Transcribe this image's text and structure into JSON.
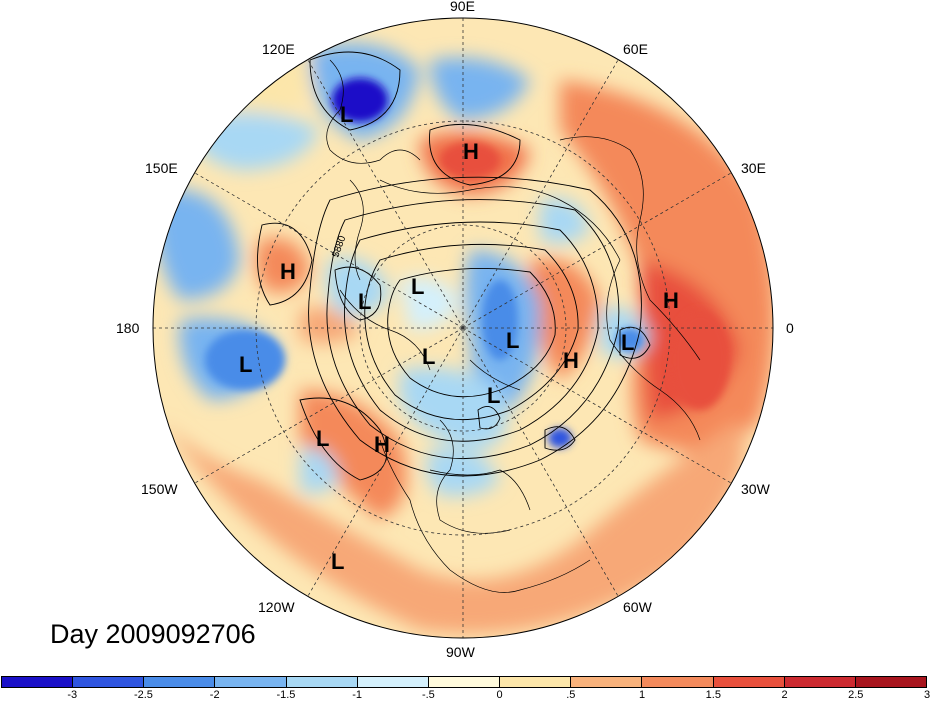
{
  "title": "Day 2009092706",
  "projection": "north-polar-stereographic",
  "longitude_labels": {
    "lon_90e": "90E",
    "lon_60e": "60E",
    "lon_30e": "30E",
    "lon_0": "0",
    "lon_30w": "30W",
    "lon_60w": "60W",
    "lon_90w": "90W",
    "lon_120w": "120W",
    "lon_150w": "150W",
    "lon_180": "180",
    "lon_150e": "150E",
    "lon_120e": "120E"
  },
  "contour_label": "5880",
  "pressure_centers": [
    {
      "label": "L",
      "region": "east-siberia"
    },
    {
      "label": "H",
      "region": "central-siberia"
    },
    {
      "label": "H",
      "region": "bering-sea"
    },
    {
      "label": "L",
      "region": "east-siberia-arctic"
    },
    {
      "label": "L",
      "region": "laptev-sea"
    },
    {
      "label": "L",
      "region": "kara-sea"
    },
    {
      "label": "L",
      "region": "arctic-ocean"
    },
    {
      "label": "H",
      "region": "scandinavia"
    },
    {
      "label": "L",
      "region": "north-atlantic"
    },
    {
      "label": "H",
      "region": "north-africa"
    },
    {
      "label": "L",
      "region": "central-pacific"
    },
    {
      "label": "L",
      "region": "greenland"
    },
    {
      "label": "L",
      "region": "gulf-of-alaska"
    },
    {
      "label": "H",
      "region": "western-north-america"
    },
    {
      "label": "L",
      "region": "east-pacific"
    }
  ],
  "colorbar": {
    "colors": [
      "#1a10c8",
      "#2f55e0",
      "#4a8ce8",
      "#78b4f0",
      "#a8d8f4",
      "#d4f0fc",
      "#fffadc",
      "#fce6aa",
      "#f8b27c",
      "#f38a5c",
      "#e8503c",
      "#cc2a30",
      "#a8151e"
    ],
    "tick_labels": [
      "-3",
      "-2.5",
      "-2",
      "-1.5",
      "-1",
      "-.5",
      "0",
      ".5",
      "1",
      "1.5",
      "2",
      "2.5",
      "3"
    ]
  }
}
